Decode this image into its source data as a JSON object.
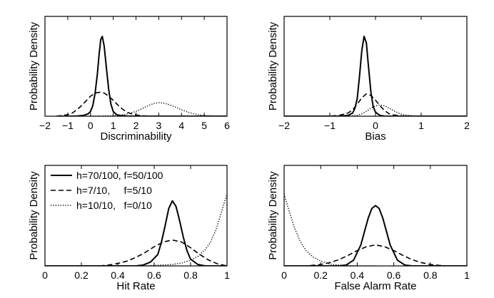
{
  "chart_data": [
    {
      "type": "line",
      "xlabel": "Discriminability",
      "ylabel": "Probability Density",
      "xlim": [
        -2,
        6
      ],
      "xticks": [
        "−2",
        "−1",
        "0",
        "1",
        "2",
        "3",
        "4",
        "5",
        "6"
      ],
      "tick_values": [
        -2,
        -1,
        0,
        1,
        2,
        3,
        4,
        5,
        6
      ],
      "ylim": [
        0,
        1.25
      ],
      "y_ticks_shown": false,
      "series": [
        {
          "style": "solid",
          "x": [
            -1.5,
            -1.0,
            -0.6,
            -0.3,
            -0.1,
            0.0,
            0.1,
            0.2,
            0.3,
            0.38,
            0.45,
            0.52,
            0.6,
            0.7,
            0.8,
            0.9,
            1.0,
            1.15,
            1.3,
            1.6,
            2.0,
            3.0,
            4.0,
            6.0
          ],
          "y": [
            0.0,
            0.0,
            0.003,
            0.01,
            0.03,
            0.06,
            0.13,
            0.28,
            0.52,
            0.78,
            0.96,
            1.0,
            0.88,
            0.6,
            0.33,
            0.15,
            0.06,
            0.02,
            0.008,
            0.002,
            0.0,
            0.0,
            0.0,
            0.0
          ]
        },
        {
          "style": "dashed",
          "x": [
            -1.5,
            -1.2,
            -1.0,
            -0.8,
            -0.6,
            -0.4,
            -0.2,
            0.0,
            0.2,
            0.4,
            0.6,
            0.8,
            1.0,
            1.2,
            1.4,
            1.6,
            1.8,
            2.0,
            2.3,
            2.6,
            3.0
          ],
          "y": [
            0.0,
            0.01,
            0.02,
            0.04,
            0.08,
            0.13,
            0.19,
            0.25,
            0.29,
            0.3,
            0.29,
            0.25,
            0.2,
            0.14,
            0.09,
            0.05,
            0.03,
            0.015,
            0.005,
            0.0,
            0.0
          ]
        },
        {
          "style": "dotted",
          "x": [
            0.0,
            1.0,
            1.5,
            2.0,
            2.3,
            2.6,
            2.8,
            3.0,
            3.2,
            3.4,
            3.7,
            4.0,
            4.3,
            4.6,
            5.0,
            5.5,
            6.0
          ],
          "y": [
            0.0,
            0.005,
            0.02,
            0.06,
            0.1,
            0.14,
            0.16,
            0.17,
            0.165,
            0.15,
            0.12,
            0.08,
            0.05,
            0.025,
            0.008,
            0.002,
            0.0
          ]
        }
      ]
    },
    {
      "type": "line",
      "xlabel": "Bias",
      "ylabel": "Probability Density",
      "xlim": [
        -2,
        2
      ],
      "xticks": [
        "−2",
        "−1",
        "0",
        "1",
        "2"
      ],
      "tick_values": [
        -2,
        -1,
        0,
        1,
        2
      ],
      "ylim": [
        0,
        1.25
      ],
      "y_ticks_shown": false,
      "series": [
        {
          "style": "solid",
          "x": [
            -2.0,
            -0.8,
            -0.6,
            -0.5,
            -0.45,
            -0.4,
            -0.35,
            -0.3,
            -0.25,
            -0.2,
            -0.15,
            -0.1,
            -0.05,
            0.0,
            0.1,
            0.2,
            0.4,
            2.0
          ],
          "y": [
            0.0,
            0.0,
            0.01,
            0.04,
            0.1,
            0.22,
            0.5,
            0.82,
            1.0,
            0.92,
            0.6,
            0.3,
            0.12,
            0.05,
            0.01,
            0.0,
            0.0,
            0.0
          ]
        },
        {
          "style": "dashed",
          "x": [
            -2.0,
            -1.0,
            -0.8,
            -0.6,
            -0.5,
            -0.4,
            -0.3,
            -0.2,
            -0.1,
            0.0,
            0.1,
            0.2,
            0.3,
            0.4,
            0.6,
            0.8,
            2.0
          ],
          "y": [
            0.0,
            0.0,
            0.01,
            0.04,
            0.08,
            0.15,
            0.23,
            0.28,
            0.26,
            0.2,
            0.13,
            0.07,
            0.03,
            0.015,
            0.003,
            0.0,
            0.0
          ]
        },
        {
          "style": "dotted",
          "x": [
            -2.0,
            -0.6,
            -0.4,
            -0.3,
            -0.2,
            -0.1,
            0.0,
            0.1,
            0.2,
            0.3,
            0.4,
            0.5,
            0.6,
            0.8,
            1.0,
            2.0
          ],
          "y": [
            0.0,
            0.0,
            0.01,
            0.03,
            0.06,
            0.1,
            0.13,
            0.14,
            0.13,
            0.1,
            0.07,
            0.04,
            0.02,
            0.005,
            0.0,
            0.0
          ]
        }
      ]
    },
    {
      "type": "line",
      "xlabel": "Hit Rate",
      "ylabel": "Probability Density",
      "xlim": [
        0,
        1
      ],
      "xticks": [
        "0",
        "0.2",
        "0.4",
        "0.6",
        "0.8",
        "1"
      ],
      "tick_values": [
        0,
        0.2,
        0.4,
        0.6,
        0.8,
        1
      ],
      "ylim": [
        0,
        1.05
      ],
      "y_ticks_shown": false,
      "legend": {
        "placement": "top-left",
        "entries": [
          {
            "style": "solid",
            "label": "h=70/100, f=50/100"
          },
          {
            "style": "dashed",
            "label": "h=7/10,     f=5/10"
          },
          {
            "style": "dotted",
            "label": "h=10/10,   f=0/10"
          }
        ]
      },
      "series": [
        {
          "style": "solid",
          "x": [
            0.0,
            0.5,
            0.54,
            0.58,
            0.62,
            0.64,
            0.66,
            0.68,
            0.7,
            0.72,
            0.74,
            0.76,
            0.78,
            0.8,
            0.84,
            0.88,
            1.0
          ],
          "y": [
            0.0,
            0.0,
            0.01,
            0.04,
            0.12,
            0.25,
            0.42,
            0.6,
            0.68,
            0.62,
            0.47,
            0.3,
            0.16,
            0.07,
            0.015,
            0.0,
            0.0
          ]
        },
        {
          "style": "dashed",
          "x": [
            0.3,
            0.35,
            0.4,
            0.45,
            0.5,
            0.55,
            0.6,
            0.65,
            0.7,
            0.75,
            0.8,
            0.85,
            0.9,
            0.95,
            1.0
          ],
          "y": [
            0.0,
            0.01,
            0.025,
            0.05,
            0.09,
            0.14,
            0.2,
            0.25,
            0.27,
            0.25,
            0.19,
            0.12,
            0.06,
            0.02,
            0.0
          ]
        },
        {
          "style": "dotted",
          "x": [
            0.5,
            0.6,
            0.7,
            0.75,
            0.8,
            0.84,
            0.88,
            0.91,
            0.94,
            0.96,
            0.98,
            1.0
          ],
          "y": [
            0.0,
            0.005,
            0.015,
            0.03,
            0.06,
            0.1,
            0.17,
            0.25,
            0.38,
            0.5,
            0.63,
            0.75
          ]
        }
      ]
    },
    {
      "type": "line",
      "xlabel": "False Alarm Rate",
      "ylabel": "Probability Density",
      "xlim": [
        0,
        1
      ],
      "xticks": [
        "0",
        "0.2",
        "0.4",
        "0.6",
        "0.8",
        "1"
      ],
      "tick_values": [
        0,
        0.2,
        0.4,
        0.6,
        0.8,
        1
      ],
      "ylim": [
        0,
        1.05
      ],
      "y_ticks_shown": false,
      "series": [
        {
          "style": "solid",
          "x": [
            0.0,
            0.3,
            0.34,
            0.38,
            0.42,
            0.44,
            0.46,
            0.48,
            0.5,
            0.52,
            0.54,
            0.56,
            0.58,
            0.62,
            0.66,
            0.7,
            1.0
          ],
          "y": [
            0.0,
            0.0,
            0.01,
            0.06,
            0.22,
            0.36,
            0.5,
            0.6,
            0.63,
            0.6,
            0.5,
            0.36,
            0.22,
            0.06,
            0.01,
            0.0,
            0.0
          ]
        },
        {
          "style": "dashed",
          "x": [
            0.1,
            0.15,
            0.2,
            0.25,
            0.3,
            0.35,
            0.4,
            0.45,
            0.5,
            0.55,
            0.6,
            0.65,
            0.7,
            0.75,
            0.8,
            0.85,
            0.9
          ],
          "y": [
            0.0,
            0.005,
            0.015,
            0.035,
            0.065,
            0.11,
            0.16,
            0.2,
            0.22,
            0.2,
            0.16,
            0.11,
            0.065,
            0.035,
            0.015,
            0.005,
            0.0
          ]
        },
        {
          "style": "dotted",
          "x": [
            0.0,
            0.02,
            0.04,
            0.06,
            0.09,
            0.12,
            0.16,
            0.2,
            0.25,
            0.3,
            0.4,
            0.5
          ],
          "y": [
            0.75,
            0.62,
            0.5,
            0.38,
            0.25,
            0.16,
            0.09,
            0.05,
            0.02,
            0.01,
            0.0,
            0.0
          ]
        }
      ]
    }
  ]
}
